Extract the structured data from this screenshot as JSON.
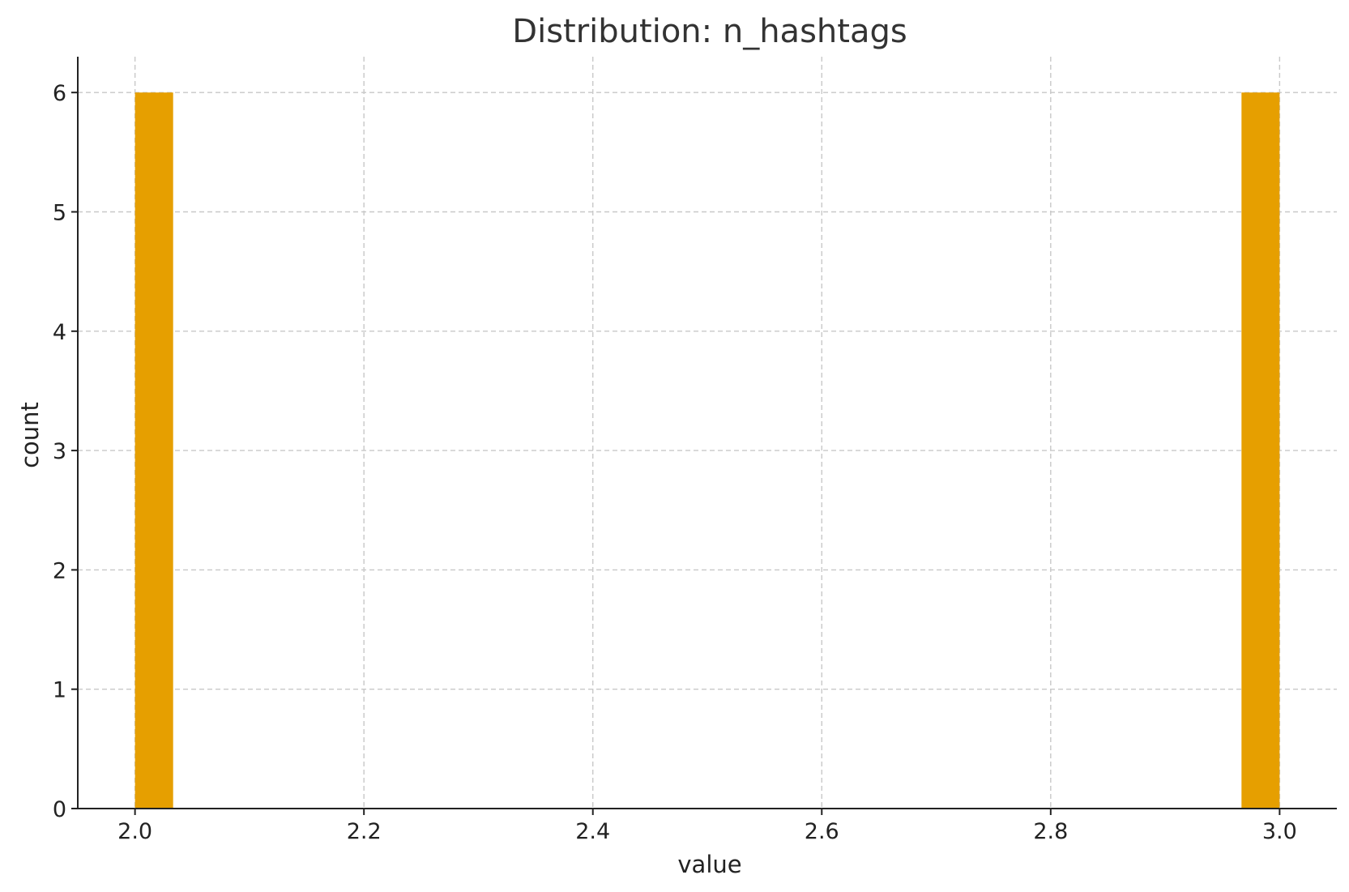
{
  "chart_data": {
    "type": "bar",
    "title": "Distribution: n_hashtags",
    "xlabel": "value",
    "ylabel": "count",
    "bar_color": "#E69F00",
    "xlim": [
      1.95,
      3.05
    ],
    "ylim": [
      0,
      6.3
    ],
    "xticks": [
      2.0,
      2.2,
      2.4,
      2.6,
      2.8,
      3.0
    ],
    "xtick_labels": [
      "2.0",
      "2.2",
      "2.4",
      "2.6",
      "2.8",
      "3.0"
    ],
    "yticks": [
      0,
      1,
      2,
      3,
      4,
      5,
      6
    ],
    "ytick_labels": [
      "0",
      "1",
      "2",
      "3",
      "4",
      "5",
      "6"
    ],
    "grid": true,
    "bins": [
      {
        "x_start": 2.0,
        "x_end": 2.0333,
        "count": 6
      },
      {
        "x_start": 2.9667,
        "x_end": 3.0,
        "count": 6
      }
    ]
  }
}
